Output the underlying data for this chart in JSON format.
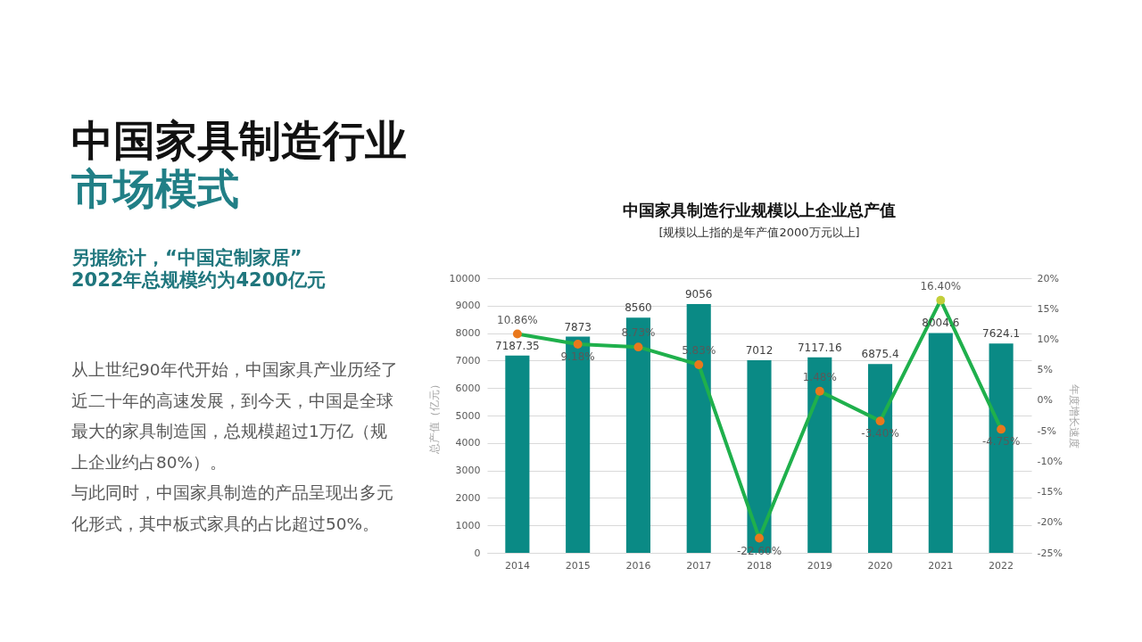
{
  "chart_data": {
    "type": "bar",
    "title": "中国家具制造行业规模以上企业总产值",
    "subtitle": "[规模以上指的是年产值2000万元以上]",
    "ylabel": "总产值（亿元）",
    "y2label": "年度增长速度",
    "categories": [
      "2014",
      "2015",
      "2016",
      "2017",
      "2018",
      "2019",
      "2020",
      "2021",
      "2022"
    ],
    "series": [
      {
        "color": "#0a8a85",
        "values": [
          7187.35,
          7873,
          8560,
          9056,
          7012,
          7117.16,
          6875.4,
          8004.6,
          7624.1
        ],
        "value_labels": [
          "7187.35",
          "7873",
          "8560",
          "9056",
          "7012",
          "7117.16",
          "6875.4",
          "8004.6",
          "7624.1"
        ]
      },
      {
        "type": "line",
        "axis": "y2",
        "color": "#1fb04c",
        "colors": [
          "#e9781c",
          "#e9781c",
          "#e9781c",
          "#e9781c",
          "#e9781c",
          "#e9781c",
          "#e9781c",
          "#c3cf3a",
          "#e9781c"
        ],
        "values": [
          10.86,
          9.18,
          8.73,
          5.83,
          -22.6,
          1.48,
          -3.4,
          16.4,
          -4.75
        ],
        "value_labels": [
          "10.86%",
          "9.18%",
          "8.73%",
          "5.83%",
          "-22.60%",
          "1.48%",
          "-3.40%",
          "16.40%",
          "-4.75%"
        ]
      }
    ],
    "ylim": [
      0,
      10000
    ],
    "yticks": [
      0,
      1000,
      2000,
      3000,
      4000,
      5000,
      6000,
      7000,
      8000,
      9000,
      10000
    ],
    "y2lim": [
      -25,
      20
    ],
    "y2ticks": [
      {
        "value": -25,
        "label": "-25%"
      },
      {
        "value": -20,
        "label": "-20%"
      },
      {
        "value": -15,
        "label": "-15%"
      },
      {
        "value": -10,
        "label": "-10%"
      },
      {
        "value": -5,
        "label": "-5%"
      },
      {
        "value": 0,
        "label": "0%"
      },
      {
        "value": 5,
        "label": "5%"
      },
      {
        "value": 10,
        "label": "10%"
      },
      {
        "value": 15,
        "label": "15%"
      },
      {
        "value": 20,
        "label": "20%"
      }
    ],
    "grid": "y",
    "marker": "circle",
    "line_style": "solid",
    "annotations": [
      "中国家具制造行业",
      "市场模式",
      "另据统计，“中国定制家居”2022年总规模约为4200亿元",
      "从上世纪90年代开始，中国家具产业历经了近二十年的高速发展，到今天，中国是全球最大的家具制造国，总规模超过1万亿（规上企业约占80%）。",
      "与此同时，中国家具制造的产品呈现出多元化形式，其中板式家具的占比超过50%。"
    ]
  }
}
